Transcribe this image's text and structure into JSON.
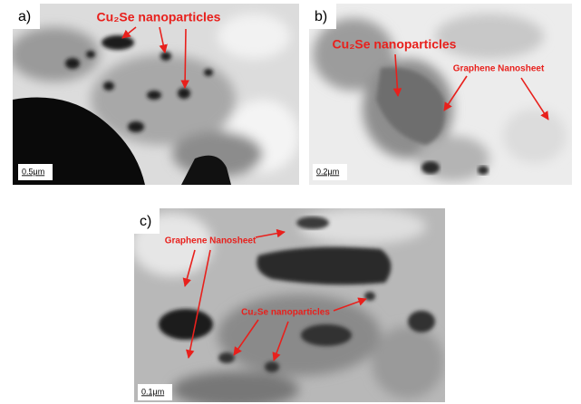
{
  "panels": [
    {
      "label": "a)",
      "scale_bar": "0.5μm",
      "annotations": [
        "Cu₂Se nanoparticles"
      ]
    },
    {
      "label": "b)",
      "scale_bar": "0.2μm",
      "annotations": [
        "Cu₂Se nanoparticles",
        "Graphene Nanosheet"
      ]
    },
    {
      "label": "c)",
      "scale_bar": "0.1μm",
      "annotations": [
        "Graphene Nanosheet",
        "Cu₂Se nanoparticles"
      ]
    }
  ]
}
